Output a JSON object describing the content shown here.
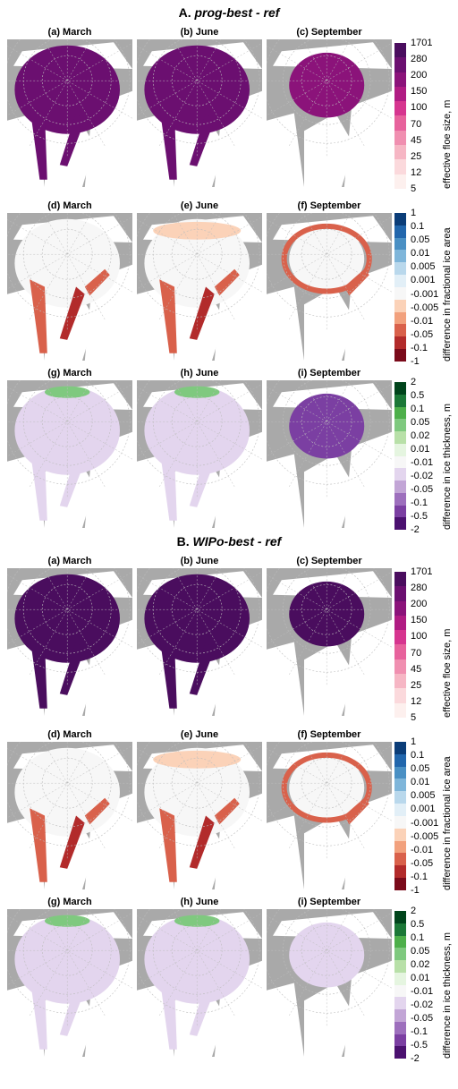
{
  "sections": [
    {
      "letter": "A.",
      "title": "prog-best - ref"
    },
    {
      "letter": "B.",
      "title": "WIPo-best - ref"
    }
  ],
  "panel_titles": [
    [
      "(a) March",
      "(b) June",
      "(c) September"
    ],
    [
      "(d) March",
      "(e) June",
      "(f) September"
    ],
    [
      "(g) March",
      "(h) June",
      "(i) September"
    ]
  ],
  "colorbars": [
    {
      "label": "effective floe size, m",
      "ticks": [
        "1701",
        "280",
        "200",
        "150",
        "100",
        "70",
        "45",
        "25",
        "12",
        "5"
      ],
      "colors": [
        "#4a0d5e",
        "#6b0f70",
        "#8b137a",
        "#b01c83",
        "#d6358f",
        "#e7629c",
        "#f08fb0",
        "#f6b6c4",
        "#fbd9dc",
        "#fdf0ee"
      ]
    },
    {
      "label": "difference in fractional ice area",
      "ticks": [
        "1",
        "0.1",
        "0.05",
        "0.01",
        "0.005",
        "0.001",
        "-0.001",
        "-0.005",
        "-0.01",
        "-0.05",
        "-0.1",
        "-1"
      ],
      "colors": [
        "#0b3d78",
        "#2166ac",
        "#4a90c4",
        "#7fb6da",
        "#b9d8ec",
        "#e2eff7",
        "#f7f7f7",
        "#fbd2b8",
        "#f2a17d",
        "#d9614b",
        "#b22b2b",
        "#7a0a1a"
      ]
    },
    {
      "label": "difference in ice thickness, m",
      "ticks": [
        "2",
        "0.5",
        "0.1",
        "0.05",
        "0.02",
        "0.01",
        "-0.01",
        "-0.02",
        "-0.05",
        "-0.1",
        "-0.5",
        "-2"
      ],
      "colors": [
        "#00441b",
        "#1b7837",
        "#4daf4a",
        "#7fc97f",
        "#b8e0a8",
        "#e5f5e0",
        "#f7f7f7",
        "#e3d5ee",
        "#c2a5d6",
        "#9d6fbd",
        "#7b3fa2",
        "#4b1170"
      ]
    }
  ]
}
